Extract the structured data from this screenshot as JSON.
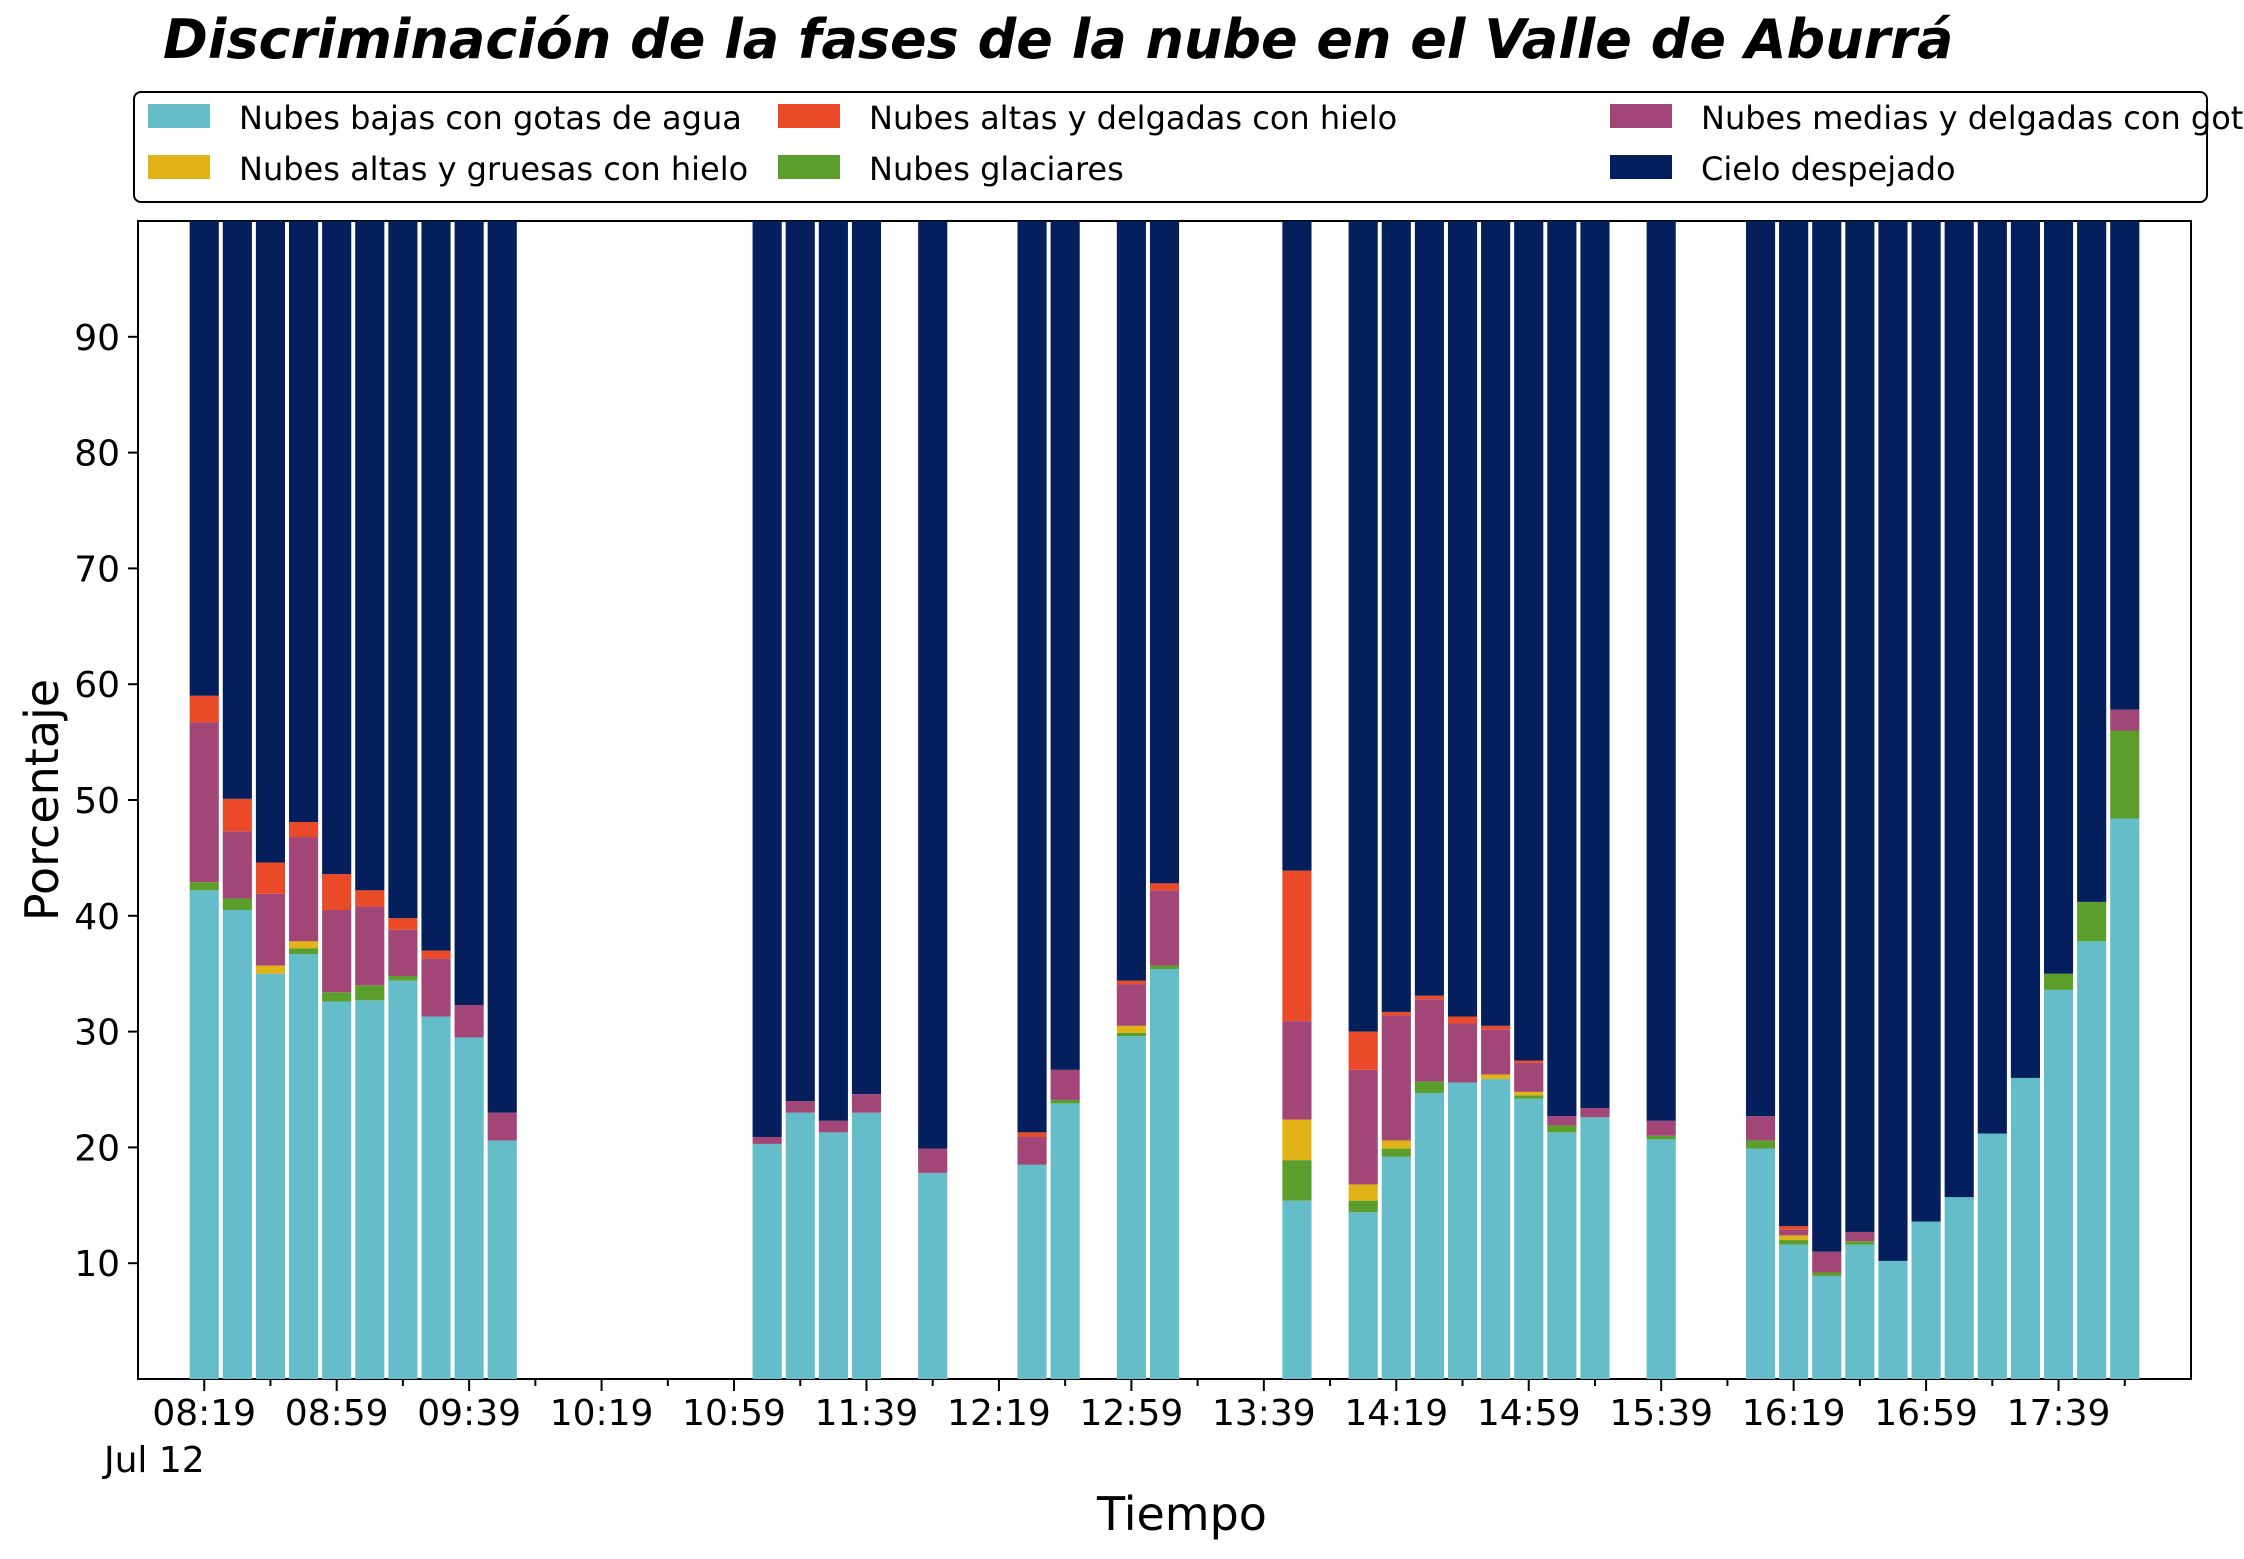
{
  "chart_data": {
    "type": "bar",
    "stacked": true,
    "title": "Discriminación de la fases de la nube en el Valle de Aburrá",
    "xlabel": "Tiempo",
    "ylabel": "Porcentaje",
    "date_label": "Jul 12",
    "ylim": [
      0,
      100
    ],
    "yticks": [
      10,
      20,
      30,
      40,
      50,
      60,
      70,
      80,
      90
    ],
    "xlim": [
      "07:59",
      "18:19"
    ],
    "xticks": [
      "08:19",
      "08:59",
      "09:39",
      "10:19",
      "10:59",
      "11:39",
      "12:19",
      "12:59",
      "13:39",
      "14:19",
      "14:59",
      "15:39",
      "16:19",
      "16:59",
      "17:39"
    ],
    "bar_interval_minutes": 10,
    "legend_position": "top",
    "legend_columns": 3,
    "grid": false,
    "series": [
      {
        "name": "Nubes bajas con gotas de agua",
        "color": "#64bdc8"
      },
      {
        "name": "Nubes glaciares",
        "color": "#5c9e2c"
      },
      {
        "name": "Nubes altas y gruesas con hielo",
        "color": "#e2b317"
      },
      {
        "name": "Nubes medias y delgadas con gotas de agua",
        "color": "#a24577"
      },
      {
        "name": "Nubes altas y delgadas con hielo",
        "color": "#eb4a29"
      },
      {
        "name": "Cielo despejado",
        "color": "#041f5c"
      }
    ],
    "legend_order": [
      0,
      2,
      4,
      1,
      3,
      5
    ],
    "bars": [
      {
        "time": "08:19",
        "values": [
          42.2,
          0.7,
          0.0,
          13.8,
          2.3,
          41.0
        ]
      },
      {
        "time": "08:29",
        "values": [
          40.5,
          1.0,
          0.0,
          5.8,
          2.8,
          49.9
        ]
      },
      {
        "time": "08:39",
        "values": [
          35.0,
          0.0,
          0.7,
          6.2,
          2.7,
          55.4
        ]
      },
      {
        "time": "08:49",
        "values": [
          36.7,
          0.5,
          0.6,
          9.0,
          1.3,
          51.9
        ]
      },
      {
        "time": "08:59",
        "values": [
          32.6,
          0.8,
          0.0,
          7.1,
          3.1,
          56.4
        ]
      },
      {
        "time": "09:09",
        "values": [
          32.7,
          1.3,
          0.0,
          6.8,
          1.4,
          57.8
        ]
      },
      {
        "time": "09:19",
        "values": [
          34.4,
          0.4,
          0.0,
          4.0,
          1.0,
          60.2
        ]
      },
      {
        "time": "09:29",
        "values": [
          31.3,
          0.0,
          0.0,
          5.0,
          0.7,
          63.0
        ]
      },
      {
        "time": "09:39",
        "values": [
          29.5,
          0.0,
          0.0,
          2.8,
          0.0,
          67.7
        ]
      },
      {
        "time": "09:49",
        "values": [
          20.6,
          0.0,
          0.0,
          2.4,
          0.0,
          77.0
        ]
      },
      {
        "time": "11:09",
        "values": [
          20.3,
          0.0,
          0.0,
          0.6,
          0.0,
          79.1
        ]
      },
      {
        "time": "11:19",
        "values": [
          23.0,
          0.0,
          0.0,
          1.0,
          0.0,
          76.0
        ]
      },
      {
        "time": "11:29",
        "values": [
          21.3,
          0.0,
          0.0,
          1.0,
          0.0,
          77.7
        ]
      },
      {
        "time": "11:39",
        "values": [
          23.0,
          0.0,
          0.0,
          1.6,
          0.0,
          75.4
        ]
      },
      {
        "time": "11:59",
        "values": [
          17.8,
          0.0,
          0.0,
          2.1,
          0.0,
          80.1
        ]
      },
      {
        "time": "12:29",
        "values": [
          18.5,
          0.0,
          0.0,
          2.4,
          0.4,
          78.7
        ]
      },
      {
        "time": "12:39",
        "values": [
          23.8,
          0.3,
          0.0,
          2.6,
          0.0,
          73.3
        ]
      },
      {
        "time": "12:59",
        "values": [
          29.6,
          0.3,
          0.6,
          3.6,
          0.3,
          65.6
        ]
      },
      {
        "time": "13:09",
        "values": [
          35.4,
          0.3,
          0.0,
          6.5,
          0.6,
          57.2
        ]
      },
      {
        "time": "13:49",
        "values": [
          15.4,
          3.5,
          3.5,
          8.5,
          13.0,
          56.1
        ]
      },
      {
        "time": "14:09",
        "values": [
          14.4,
          1.0,
          1.4,
          9.9,
          3.3,
          70.0
        ]
      },
      {
        "time": "14:19",
        "values": [
          19.2,
          0.7,
          0.7,
          10.8,
          0.3,
          68.3
        ]
      },
      {
        "time": "14:29",
        "values": [
          24.7,
          1.0,
          0.0,
          7.1,
          0.3,
          66.9
        ]
      },
      {
        "time": "14:39",
        "values": [
          25.6,
          0.0,
          0.0,
          5.1,
          0.6,
          68.7
        ]
      },
      {
        "time": "14:49",
        "values": [
          25.9,
          0.0,
          0.4,
          3.9,
          0.3,
          69.5
        ]
      },
      {
        "time": "14:59",
        "values": [
          24.2,
          0.3,
          0.3,
          2.5,
          0.2,
          72.5
        ]
      },
      {
        "time": "15:09",
        "values": [
          21.3,
          0.6,
          0.0,
          0.8,
          0.0,
          77.3
        ]
      },
      {
        "time": "15:19",
        "values": [
          22.6,
          0.0,
          0.0,
          0.8,
          0.0,
          76.6
        ]
      },
      {
        "time": "15:39",
        "values": [
          20.7,
          0.3,
          0.0,
          1.3,
          0.0,
          77.7
        ]
      },
      {
        "time": "16:09",
        "values": [
          19.9,
          0.7,
          0.0,
          2.1,
          0.0,
          77.3
        ]
      },
      {
        "time": "16:19",
        "values": [
          11.6,
          0.4,
          0.4,
          0.5,
          0.3,
          86.8
        ]
      },
      {
        "time": "16:29",
        "values": [
          8.9,
          0.3,
          0.0,
          1.8,
          0.0,
          89.0
        ]
      },
      {
        "time": "16:39",
        "values": [
          11.6,
          0.3,
          0.0,
          0.8,
          0.0,
          87.3
        ]
      },
      {
        "time": "16:49",
        "values": [
          10.2,
          0.0,
          0.0,
          0.0,
          0.0,
          89.8
        ]
      },
      {
        "time": "16:59",
        "values": [
          13.6,
          0.0,
          0.0,
          0.0,
          0.0,
          86.4
        ]
      },
      {
        "time": "17:09",
        "values": [
          15.7,
          0.0,
          0.0,
          0.0,
          0.0,
          84.3
        ]
      },
      {
        "time": "17:19",
        "values": [
          21.2,
          0.0,
          0.0,
          0.0,
          0.0,
          78.8
        ]
      },
      {
        "time": "17:29",
        "values": [
          26.0,
          0.0,
          0.0,
          0.0,
          0.0,
          74.0
        ]
      },
      {
        "time": "17:39",
        "values": [
          33.6,
          1.4,
          0.0,
          0.0,
          0.0,
          65.0
        ]
      },
      {
        "time": "17:49",
        "values": [
          37.8,
          3.4,
          0.0,
          0.0,
          0.0,
          58.8
        ]
      },
      {
        "time": "17:59",
        "values": [
          48.4,
          7.6,
          0.0,
          1.8,
          0.0,
          42.2
        ]
      }
    ]
  }
}
